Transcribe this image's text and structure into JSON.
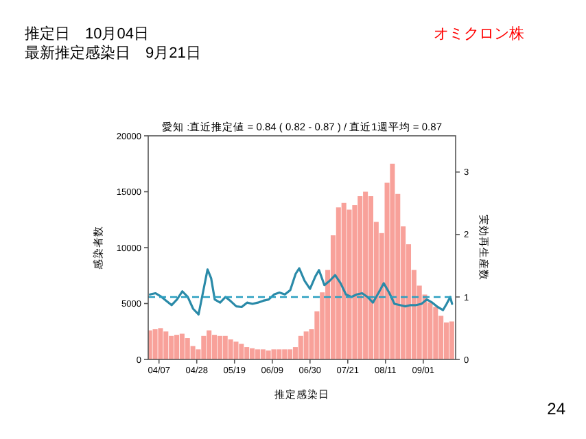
{
  "chart_data": {
    "type": "bar",
    "title": "愛知 :直近推定値 = 0.84 ( 0.82 - 0.87 ) / 直近1週平均 = 0.87",
    "xlabel": "推定感染日",
    "ylabel": "感染者数",
    "y2label": "実効再生産数",
    "annotations": [
      "推定日　10月04日",
      "最新推定感染日　9月21日",
      "オミクロン株",
      "24"
    ],
    "xlim": [
      "--04-01",
      "--09-19"
    ],
    "xticks": [
      {
        "value": "--04-07",
        "label": "04/07"
      },
      {
        "value": "--04-28",
        "label": "04/28"
      },
      {
        "value": "--05-19",
        "label": "05/19"
      },
      {
        "value": "--06-09",
        "label": "06/09"
      },
      {
        "value": "--06-30",
        "label": "06/30"
      },
      {
        "value": "--07-21",
        "label": "07/21"
      },
      {
        "value": "--08-11",
        "label": "08/11"
      },
      {
        "value": "--09-01",
        "label": "09/01"
      }
    ],
    "ylim": [
      0,
      20000
    ],
    "yticks": [
      0,
      5000,
      10000,
      15000,
      20000
    ],
    "y2lim": [
      0,
      3.58
    ],
    "y2ticks": [
      0,
      1,
      2,
      3
    ],
    "ref_lines": [
      {
        "axis": "y2",
        "value": 1,
        "color": "#2a9fc0",
        "line_style": "dashed"
      }
    ],
    "series": [
      {
        "color": "#f8a19a",
        "x": [
          "--04-02",
          "--04-05",
          "--04-08",
          "--04-11",
          "--04-14",
          "--04-17",
          "--04-20",
          "--04-23",
          "--04-26",
          "--04-29",
          "--05-02",
          "--05-05",
          "--05-08",
          "--05-11",
          "--05-14",
          "--05-17",
          "--05-20",
          "--05-23",
          "--05-26",
          "--05-29",
          "--06-01",
          "--06-04",
          "--06-07",
          "--06-10",
          "--06-13",
          "--06-16",
          "--06-19",
          "--06-22",
          "--06-25",
          "--06-28",
          "--07-01",
          "--07-04",
          "--07-07",
          "--07-10",
          "--07-13",
          "--07-16",
          "--07-19",
          "--07-22",
          "--07-25",
          "--07-28",
          "--07-31",
          "--08-03",
          "--08-06",
          "--08-09",
          "--08-12",
          "--08-15",
          "--08-18",
          "--08-21",
          "--08-24",
          "--08-27",
          "--08-30",
          "--09-02",
          "--09-05",
          "--09-08",
          "--09-11",
          "--09-14",
          "--09-17"
        ],
        "values": [
          2600,
          2700,
          2800,
          2500,
          2100,
          2200,
          2300,
          1900,
          1200,
          900,
          2100,
          2600,
          2200,
          2100,
          2100,
          1800,
          1600,
          1400,
          1100,
          1000,
          900,
          900,
          800,
          900,
          900,
          900,
          900,
          1100,
          2100,
          2500,
          2700,
          4300,
          6000,
          8000,
          11100,
          13600,
          14000,
          13400,
          13800,
          14600,
          15000,
          14600,
          12300,
          11300,
          15800,
          17500,
          14800,
          11900,
          10300,
          8000,
          6600,
          5800,
          5100,
          4700,
          3900,
          3300,
          3400
        ]
      },
      {
        "type": "line",
        "axis": "y2",
        "color": "#2a8aa8",
        "x": [
          "--04-02",
          "--04-05",
          "--04-08",
          "--04-11",
          "--04-14",
          "--04-17",
          "--04-20",
          "--04-23",
          "--04-26",
          "--04-29",
          "--05-02",
          "--05-04",
          "--05-06",
          "--05-08",
          "--05-11",
          "--05-14",
          "--05-17",
          "--05-20",
          "--05-23",
          "--05-26",
          "--05-29",
          "--06-01",
          "--06-04",
          "--06-07",
          "--06-10",
          "--06-13",
          "--06-16",
          "--06-19",
          "--06-22",
          "--06-24",
          "--06-27",
          "--06-30",
          "--07-03",
          "--07-05",
          "--07-08",
          "--07-11",
          "--07-14",
          "--07-17",
          "--07-20",
          "--07-23",
          "--07-26",
          "--07-29",
          "--08-01",
          "--08-04",
          "--08-07",
          "--08-10",
          "--08-13",
          "--08-16",
          "--08-19",
          "--08-22",
          "--08-25",
          "--08-28",
          "--08-31",
          "--09-03",
          "--09-06",
          "--09-09",
          "--09-12",
          "--09-14",
          "--09-16",
          "--09-17"
        ],
        "values": [
          1.04,
          1.06,
          1.01,
          0.94,
          0.87,
          0.96,
          1.09,
          1.0,
          0.81,
          0.72,
          1.15,
          1.44,
          1.3,
          0.96,
          0.91,
          1.0,
          0.93,
          0.85,
          0.84,
          0.91,
          0.89,
          0.91,
          0.94,
          0.96,
          1.04,
          1.07,
          1.04,
          1.11,
          1.37,
          1.46,
          1.26,
          1.13,
          1.33,
          1.43,
          1.19,
          1.26,
          1.35,
          1.22,
          1.04,
          1.0,
          1.04,
          1.06,
          1.0,
          0.91,
          1.06,
          1.22,
          1.07,
          0.89,
          0.87,
          0.85,
          0.87,
          0.87,
          0.89,
          0.96,
          0.91,
          0.84,
          0.79,
          0.89,
          1.0,
          0.89
        ]
      }
    ]
  }
}
